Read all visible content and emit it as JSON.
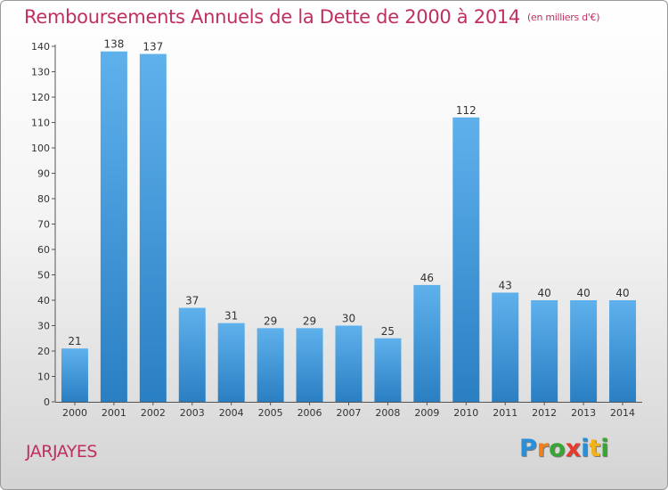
{
  "title": "Remboursements Annuels de la Dette de 2000 à 2014",
  "unit_note": "(en milliers d'€)",
  "commune": "JARJAYES",
  "logo": {
    "letters": [
      "P",
      "r",
      "o",
      "x",
      "i",
      "t",
      "i"
    ],
    "colors": [
      "#2a8fd6",
      "#f07f1d",
      "#3aa535",
      "#e63b2e",
      "#2a8fd6",
      "#f2b21c",
      "#3aa535"
    ]
  },
  "colors": {
    "accent": "#c0305f",
    "bar_top": "#5fb1ec",
    "bar_bottom": "#2a7fc3"
  },
  "chart_data": {
    "type": "bar",
    "title": "Remboursements Annuels de la Dette de 2000 à 2014",
    "xlabel": "",
    "ylabel": "",
    "ylim": [
      0,
      140
    ],
    "yticks": [
      0,
      10,
      20,
      30,
      40,
      50,
      60,
      70,
      80,
      90,
      100,
      110,
      120,
      130,
      140
    ],
    "categories": [
      "2000",
      "2001",
      "2002",
      "2003",
      "2004",
      "2005",
      "2006",
      "2007",
      "2008",
      "2009",
      "2010",
      "2011",
      "2012",
      "2013",
      "2014"
    ],
    "values": [
      21,
      138,
      137,
      37,
      31,
      29,
      29,
      30,
      25,
      46,
      112,
      43,
      40,
      40,
      40
    ],
    "grid": false,
    "data_labels": true
  }
}
